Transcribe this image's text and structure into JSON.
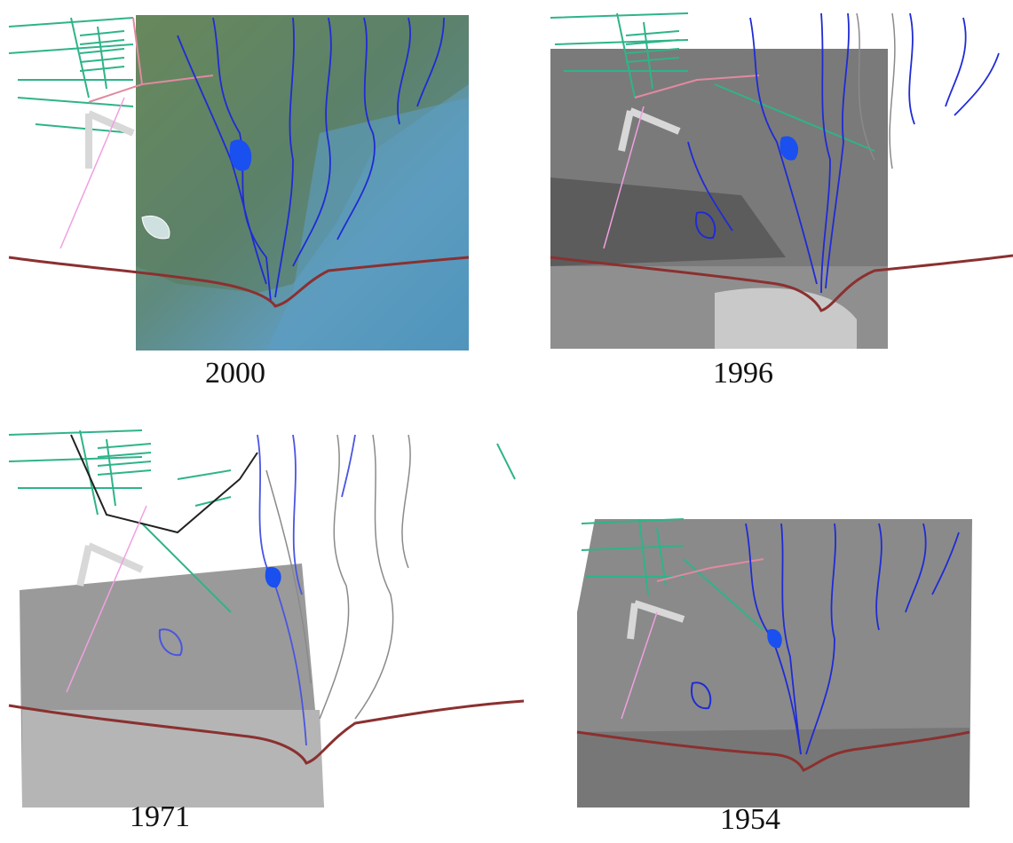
{
  "panels": [
    {
      "year": "2000",
      "imagery": "color-aerial"
    },
    {
      "year": "1996",
      "imagery": "grayscale-aerial"
    },
    {
      "year": "1971",
      "imagery": "grayscale-aerial"
    },
    {
      "year": "1954",
      "imagery": "grayscale-aerial"
    }
  ],
  "colors": {
    "channels": "#1f2bd6",
    "coastline": "#8b3030",
    "canals": "#2fb38a",
    "runway": "#d8d8d8",
    "road": "#e08aa0",
    "old_channels": "#8a8a8a",
    "ponds": "#1a4ff0"
  }
}
